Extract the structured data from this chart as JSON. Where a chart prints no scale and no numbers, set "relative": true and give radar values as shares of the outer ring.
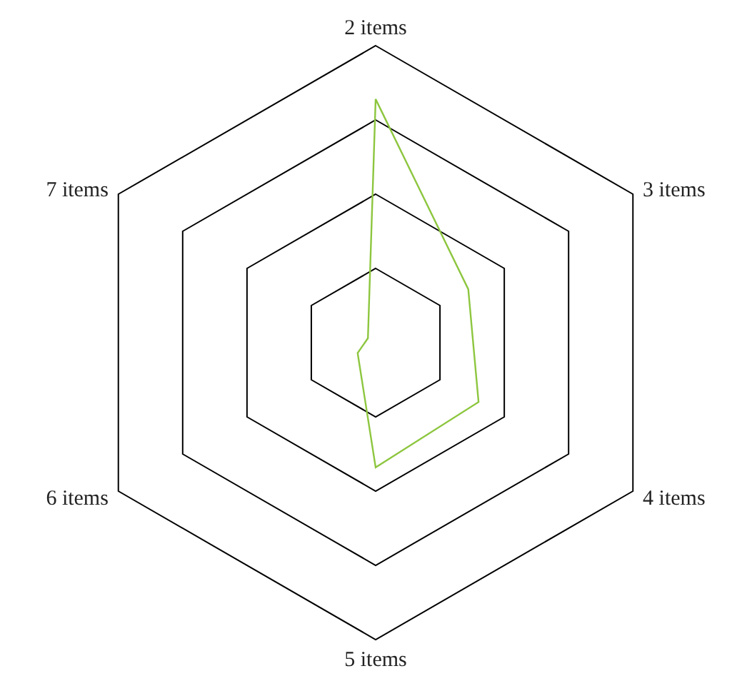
{
  "chart_data": {
    "type": "radar",
    "relative": true,
    "categories": [
      "2 items",
      "3 items",
      "4 items",
      "5 items",
      "6 items",
      "7 items"
    ],
    "series": [
      {
        "color": "#8dc63f",
        "values": [
          0.82,
          0.36,
          0.4,
          0.42,
          0.07,
          0.03
        ]
      }
    ],
    "legend": false,
    "grid": true
  }
}
